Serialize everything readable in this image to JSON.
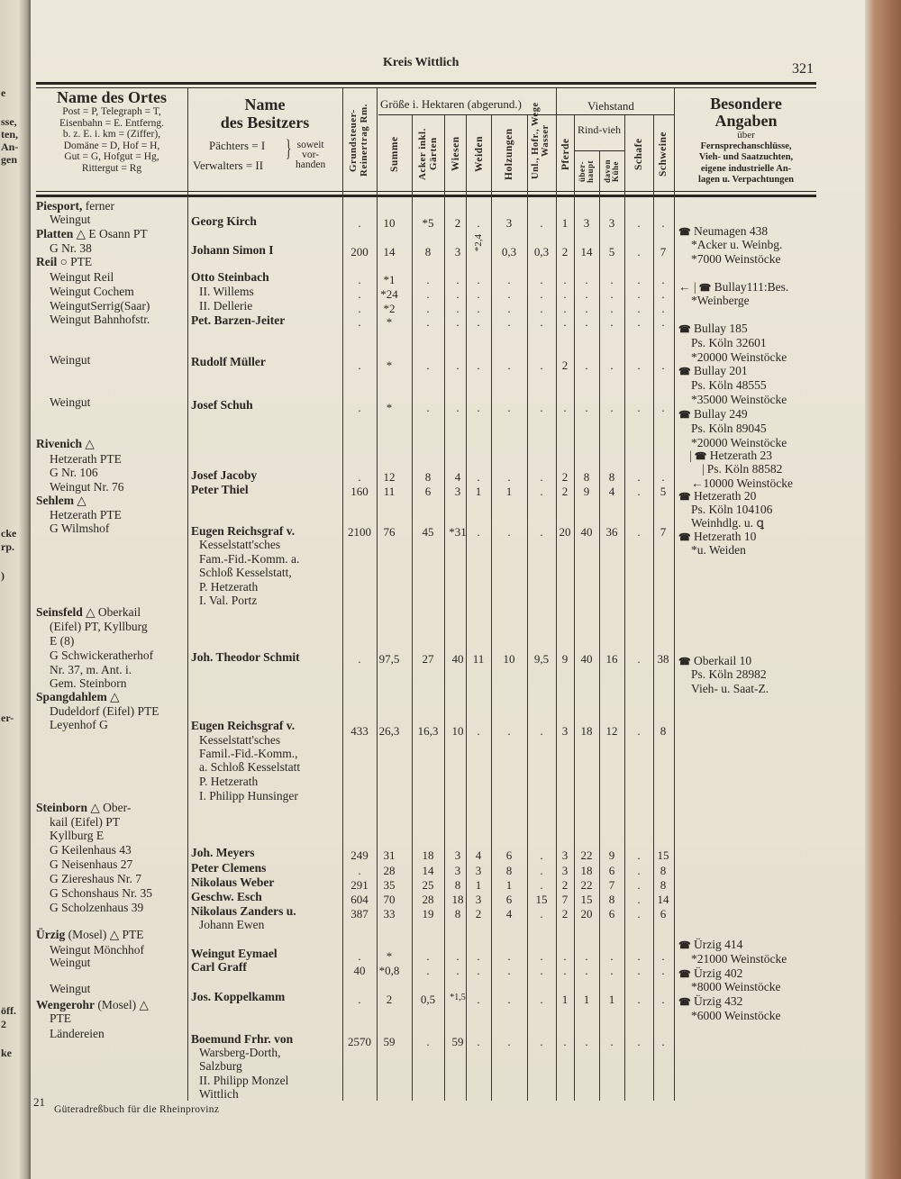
{
  "page": {
    "running_head": "Kreis Wittlich",
    "page_number": "321",
    "footer_signature": "21",
    "footer_text": "Güteradreßbuch für die Rheinprovinz",
    "prev_page_fragments": [
      "e",
      "sse,",
      "ten,",
      "An-",
      "gen",
      "cke",
      "rp.",
      ")",
      "er-",
      "öff.",
      "2",
      "ke"
    ]
  },
  "header": {
    "place": {
      "title": "Name des Ortes",
      "legend": [
        "Post = P, Telegraph = T,",
        "Eisenbahn = E. Entferng.",
        "b. z. E. i. km = (Ziffer),",
        "Domäne = D, Hof = H,",
        "Gut = G, Hofgut = Hg,",
        "Rittergut = Rg"
      ]
    },
    "owner": {
      "title1": "Name",
      "title2": "des Besitzers",
      "pacht": "Pächters = I",
      "verw": "Verwalters = II",
      "brace_note": [
        "soweit",
        "vor-",
        "handen"
      ]
    },
    "tax": "Grundsteuer-Reinertrag Rm.",
    "area_group": "Größe i. Hektaren (abgerund.)",
    "area_cols": [
      "Summe",
      "Acker inkl. Gärten",
      "Wiesen",
      "Weiden",
      "Holzungen",
      "Unl., Hofr., Wege Wasser"
    ],
    "livestock_group": "Viehstand",
    "livestock_cols": {
      "horses": "Pferde",
      "cattle": "Rind-vieh",
      "cattle_total": "über-haupt",
      "cows": "davon Kühe",
      "sheep": "Schafe",
      "pigs": "Schweine"
    },
    "notes": {
      "title1": "Besondere",
      "title2": "Angaben",
      "sub": [
        "über",
        "Fernsprechanschlüsse,",
        "Vieh- und Saatzuchten,",
        "eigene industrielle An-",
        "lagen u. Verpachtungen"
      ]
    }
  },
  "places": [
    {
      "b": "Piesport,",
      "t": " ferner",
      "i": 0
    },
    {
      "b": "",
      "t": "Weingut",
      "i": 1
    },
    {
      "b": "Platten",
      "t": " △ E Osann PT",
      "i": 0
    },
    {
      "b": "",
      "t": "G Nr. 38",
      "i": 1
    },
    {
      "b": "Reil",
      "t": " ○ PTE",
      "i": 0
    },
    {
      "b": "",
      "t": "Weingut Reil",
      "i": 1
    },
    {
      "b": "",
      "t": "Weingut Cochem",
      "i": 1
    },
    {
      "b": "",
      "t": "WeingutSerrig(Saar)",
      "i": 1
    },
    {
      "b": "",
      "t": "Weingut Bahnhofstr.",
      "i": 1
    },
    {
      "b": "",
      "t": "Weingut",
      "i": 1
    },
    {
      "b": "",
      "t": "Weingut",
      "i": 1
    },
    {
      "b": "Rivenich",
      "t": " △",
      "i": 0
    },
    {
      "b": "",
      "t": "Hetzerath PTE",
      "i": 1
    },
    {
      "b": "",
      "t": "G Nr. 106",
      "i": 1
    },
    {
      "b": "",
      "t": "Weingut Nr. 76",
      "i": 1
    },
    {
      "b": "Sehlem",
      "t": " △",
      "i": 0
    },
    {
      "b": "",
      "t": "Hetzerath PTE",
      "i": 1
    },
    {
      "b": "",
      "t": "G Wilmshof",
      "i": 1
    },
    {
      "b": "Seinsfeld",
      "t": " △ Oberkail",
      "i": 0
    },
    {
      "b": "",
      "t": "(Eifel) PT, Kyllburg",
      "i": 1
    },
    {
      "b": "",
      "t": "E (8)",
      "i": 1
    },
    {
      "b": "",
      "t": "G Schwickeratherhof",
      "i": 1
    },
    {
      "b": "",
      "t": "Nr. 37, m. Ant. i.",
      "i": 1
    },
    {
      "b": "",
      "t": "Gem. Steinborn",
      "i": 1
    },
    {
      "b": "Spangdahlem",
      "t": " △",
      "i": 0
    },
    {
      "b": "",
      "t": "Dudeldorf (Eifel) PTE",
      "i": 1
    },
    {
      "b": "",
      "t": "Leyenhof G",
      "i": 1
    },
    {
      "b": "Steinborn",
      "t": " △ Ober-",
      "i": 0
    },
    {
      "b": "",
      "t": "kail (Eifel) PT",
      "i": 1
    },
    {
      "b": "",
      "t": "Kyllburg E",
      "i": 1
    },
    {
      "b": "",
      "t": "G Keilenhaus 43",
      "i": 1
    },
    {
      "b": "",
      "t": "G Neisenhaus 27",
      "i": 1
    },
    {
      "b": "",
      "t": "G Ziereshaus Nr. 7",
      "i": 1
    },
    {
      "b": "",
      "t": "G Schonshaus Nr. 35",
      "i": 1
    },
    {
      "b": "",
      "t": "G Scholzenhaus 39",
      "i": 1
    },
    {
      "b": "Ürzig",
      "t": " (Mosel) △ PTE",
      "i": 0
    },
    {
      "b": "",
      "t": "Weingut Mönchhof",
      "i": 1
    },
    {
      "b": "",
      "t": "Weingut",
      "i": 1
    },
    {
      "b": "",
      "t": "Weingut",
      "i": 1
    },
    {
      "b": "Wengerohr",
      "t": " (Mosel) △",
      "i": 0
    },
    {
      "b": "",
      "t": "PTE",
      "i": 1
    },
    {
      "b": "",
      "t": "Ländereien",
      "i": 1
    }
  ],
  "owners": [
    "Georg Kirch",
    "Johann Simon I",
    "Otto Steinbach",
    "II. Willems",
    "II. Dellerie",
    "Pet. Barzen-Jeiter",
    "Rudolf Müller",
    "Josef Schuh",
    "Josef Jacoby",
    "Peter Thiel",
    "Eugen Reichsgraf v.",
    "Kesselstatt'sches",
    "Fam.-Fid.-Komm. a.",
    "Schloß Kesselstatt,",
    "P. Hetzerath",
    "I. Val. Portz",
    "Joh. Theodor Schmit",
    "Eugen Reichsgraf v.",
    "Kesselstatt'sches",
    "Famil.-Fid.-Komm.,",
    "a. Schloß Kesselstatt",
    "P. Hetzerath",
    "I. Philipp Hunsinger",
    "Joh. Meyers",
    "Peter Clemens",
    "Nikolaus Weber",
    "Geschw. Esch",
    "Nikolaus Zanders u.",
    "Johann Ewen",
    "Weingut Eymael",
    "Carl Graff",
    "Jos. Koppelkamm",
    "Boemund Frhr. von",
    "Warsberg-Dorth,",
    "Salzburg",
    "II. Philipp Monzel",
    "Wittlich"
  ],
  "rows": [
    [
      ".",
      "10",
      "*5",
      "2",
      ".",
      "3",
      ".",
      "1",
      "3",
      "3",
      ".",
      "."
    ],
    [
      "200",
      "14",
      "8",
      "3",
      "*2,4",
      "0,3",
      "0,3",
      "2",
      "14",
      "5",
      ".",
      "7"
    ],
    [
      ".",
      "*1",
      ".",
      ".",
      ".",
      ".",
      ".",
      ".",
      ".",
      ".",
      ".",
      "."
    ],
    [
      ".",
      "*24",
      ".",
      ".",
      ".",
      ".",
      ".",
      ".",
      ".",
      ".",
      ".",
      "."
    ],
    [
      ".",
      "*2",
      ".",
      ".",
      ".",
      ".",
      ".",
      ".",
      ".",
      ".",
      ".",
      "."
    ],
    [
      ".",
      "*",
      ".",
      ".",
      ".",
      ".",
      ".",
      ".",
      ".",
      ".",
      ".",
      "."
    ],
    [
      ".",
      "*",
      ".",
      ".",
      ".",
      ".",
      ".",
      "2",
      ".",
      ".",
      ".",
      "."
    ],
    [
      ".",
      "*",
      ".",
      ".",
      ".",
      ".",
      ".",
      ".",
      ".",
      ".",
      ".",
      "."
    ],
    [
      ".",
      "12",
      "8",
      "4",
      ".",
      ".",
      ".",
      "2",
      "8",
      "8",
      ".",
      "."
    ],
    [
      "160",
      "11",
      "6",
      "3",
      "1",
      "1",
      ".",
      "2",
      "9",
      "4",
      ".",
      "5"
    ],
    [
      "2100",
      "76",
      "45",
      "*31",
      ".",
      ".",
      ".",
      "20",
      "40",
      "36",
      ".",
      "7"
    ],
    [
      ".",
      "97,5",
      "27",
      "40",
      "11",
      "10",
      "9,5",
      "9",
      "40",
      "16",
      ".",
      "38"
    ],
    [
      "433",
      "26,3",
      "16,3",
      "10",
      ".",
      ".",
      ".",
      "3",
      "18",
      "12",
      ".",
      "8"
    ],
    [
      "249",
      "31",
      "18",
      "3",
      "4",
      "6",
      ".",
      "3",
      "22",
      "9",
      ".",
      "15"
    ],
    [
      ".",
      "28",
      "14",
      "3",
      "3",
      "8",
      ".",
      "3",
      "18",
      "6",
      ".",
      "8"
    ],
    [
      "291",
      "35",
      "25",
      "8",
      "1",
      "1",
      ".",
      "2",
      "22",
      "7",
      ".",
      "8"
    ],
    [
      "604",
      "70",
      "28",
      "18",
      "3",
      "6",
      "15",
      "7",
      "15",
      "8",
      ".",
      "14"
    ],
    [
      "387",
      "33",
      "19",
      "8",
      "2",
      "4",
      ".",
      "2",
      "20",
      "6",
      ".",
      "6"
    ],
    [
      ".",
      "*",
      ".",
      ".",
      ".",
      ".",
      ".",
      ".",
      ".",
      ".",
      ".",
      "."
    ],
    [
      "40",
      "*0,8",
      ".",
      ".",
      ".",
      ".",
      ".",
      ".",
      ".",
      ".",
      ".",
      "."
    ],
    [
      ".",
      "2",
      "0,5",
      "*1,5",
      ".",
      ".",
      ".",
      "1",
      "1",
      "1",
      ".",
      "."
    ],
    [
      "2570",
      "59",
      ".",
      "59",
      ".",
      ".",
      ".",
      ".",
      ".",
      ".",
      ".",
      "."
    ]
  ],
  "notes": [
    {
      "phone": true,
      "t": "Neumagen 438"
    },
    {
      "phone": false,
      "t": "*Acker u. Weinbg."
    },
    {
      "phone": false,
      "t": "*7000 Weinstöcke"
    },
    {
      "phone": true,
      "t": "Bullay111:Bes.",
      "prefix": "← |"
    },
    {
      "phone": false,
      "t": "*Weinberge"
    },
    {
      "phone": true,
      "t": "Bullay 185"
    },
    {
      "phone": false,
      "t": "Ps. Köln 32601"
    },
    {
      "phone": false,
      "t": "*20000 Weinstöcke"
    },
    {
      "phone": true,
      "t": "Bullay 201"
    },
    {
      "phone": false,
      "t": "Ps. Köln 48555"
    },
    {
      "phone": false,
      "t": "*35000 Weinstöcke"
    },
    {
      "phone": true,
      "t": "Bullay 249"
    },
    {
      "phone": false,
      "t": "Ps. Köln 89045"
    },
    {
      "phone": false,
      "t": "*20000 Weinstöcke"
    },
    {
      "phone": true,
      "t": "Hetzerath 23",
      "prefix": "|"
    },
    {
      "phone": false,
      "t": "Ps. Köln 88582",
      "prefix": "|"
    },
    {
      "phone": false,
      "t": "←10000 Weinstöcke"
    },
    {
      "phone": true,
      "t": "Hetzerath 20"
    },
    {
      "phone": false,
      "t": "Ps. Köln 104106"
    },
    {
      "phone": false,
      "t": "Weinhdlg. u. ꝗ"
    },
    {
      "phone": true,
      "t": "Hetzerath 10"
    },
    {
      "phone": false,
      "t": "*u. Weiden"
    },
    {
      "phone": true,
      "t": "Oberkail 10"
    },
    {
      "phone": false,
      "t": "Ps. Köln 28982"
    },
    {
      "phone": false,
      "t": "Vieh- u. Saat-Z."
    },
    {
      "phone": true,
      "t": "Ürzig 414"
    },
    {
      "phone": false,
      "t": "*21000 Weinstöcke"
    },
    {
      "phone": true,
      "t": "Ürzig 402"
    },
    {
      "phone": false,
      "t": "*8000 Weinstöcke"
    },
    {
      "phone": true,
      "t": "Ürzig 432"
    },
    {
      "phone": false,
      "t": "*6000 Weinstöcke"
    }
  ],
  "icons": {
    "phone": "telephone-icon"
  },
  "colors": {
    "paper": "#e8e3d3",
    "ink": "#2a2622",
    "book_edge": "#a9785a"
  }
}
